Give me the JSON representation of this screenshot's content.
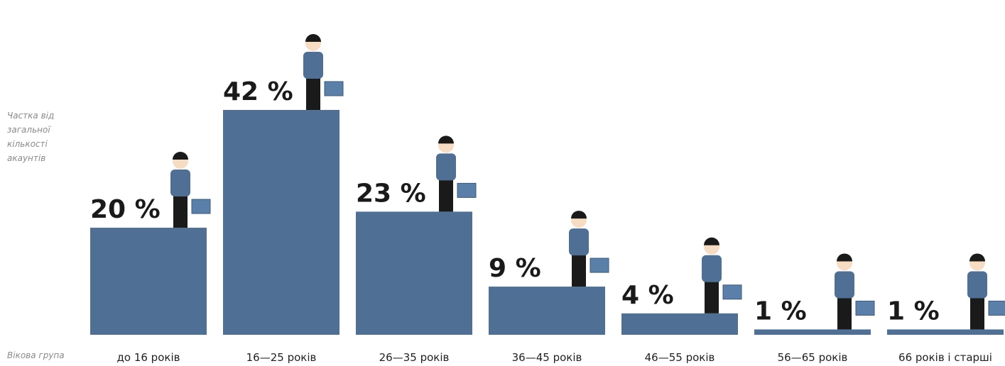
{
  "chart_data": {
    "type": "bar",
    "y_label": "Частка від загальної кількості акаунтів",
    "x_label": "Вікова група",
    "categories": [
      "до 16 років",
      "16—25 років",
      "26—35 років",
      "36—45 років",
      "46—55 років",
      "56—65 років",
      "66 років і старші"
    ],
    "values": [
      20,
      42,
      23,
      9,
      4,
      1,
      1
    ],
    "value_labels": [
      "20 %",
      "42 %",
      "23 %",
      "9 %",
      "4 %",
      "1 %",
      "1 %"
    ],
    "color": "#4f6f94"
  }
}
